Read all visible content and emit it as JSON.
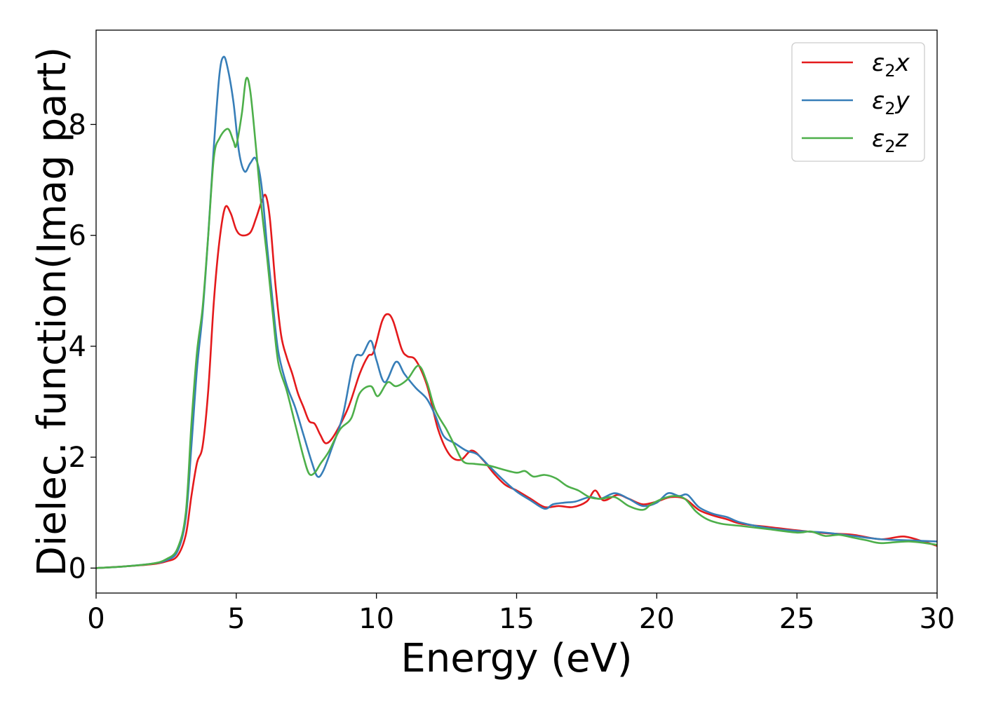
{
  "chart_data": {
    "type": "line",
    "xlabel": "Energy (eV)",
    "ylabel": "Dielec. function(Imag part)",
    "xlim": [
      0,
      30
    ],
    "ylim": [
      -0.45,
      9.7
    ],
    "x_ticks": [
      0,
      5,
      10,
      15,
      20,
      25,
      30
    ],
    "y_ticks": [
      0,
      2,
      4,
      6,
      8
    ],
    "grid": false,
    "legend_position": "top-right",
    "series": [
      {
        "name": "ε2x",
        "legend": {
          "base": "ε",
          "sub": "2",
          "tail": "x"
        },
        "color": "#e41a1c",
        "points": [
          [
            0,
            0
          ],
          [
            1,
            0.03
          ],
          [
            2,
            0.07
          ],
          [
            2.5,
            0.12
          ],
          [
            2.9,
            0.22
          ],
          [
            3.2,
            0.6
          ],
          [
            3.4,
            1.3
          ],
          [
            3.6,
            1.9
          ],
          [
            3.8,
            2.2
          ],
          [
            4.0,
            3.2
          ],
          [
            4.2,
            4.8
          ],
          [
            4.4,
            5.9
          ],
          [
            4.6,
            6.5
          ],
          [
            4.8,
            6.4
          ],
          [
            5.0,
            6.1
          ],
          [
            5.2,
            6.0
          ],
          [
            5.5,
            6.05
          ],
          [
            5.7,
            6.3
          ],
          [
            5.9,
            6.6
          ],
          [
            6.05,
            6.72
          ],
          [
            6.2,
            6.3
          ],
          [
            6.4,
            5.1
          ],
          [
            6.6,
            4.2
          ],
          [
            6.8,
            3.8
          ],
          [
            7.0,
            3.5
          ],
          [
            7.2,
            3.15
          ],
          [
            7.4,
            2.9
          ],
          [
            7.6,
            2.65
          ],
          [
            7.8,
            2.6
          ],
          [
            8.0,
            2.4
          ],
          [
            8.2,
            2.25
          ],
          [
            8.5,
            2.4
          ],
          [
            9.0,
            2.9
          ],
          [
            9.4,
            3.5
          ],
          [
            9.7,
            3.82
          ],
          [
            9.9,
            3.9
          ],
          [
            10.2,
            4.45
          ],
          [
            10.4,
            4.58
          ],
          [
            10.6,
            4.45
          ],
          [
            10.9,
            3.95
          ],
          [
            11.1,
            3.82
          ],
          [
            11.4,
            3.75
          ],
          [
            11.8,
            3.3
          ],
          [
            12.2,
            2.5
          ],
          [
            12.6,
            2.05
          ],
          [
            13.0,
            1.95
          ],
          [
            13.4,
            2.12
          ],
          [
            13.8,
            1.95
          ],
          [
            14.2,
            1.7
          ],
          [
            14.6,
            1.5
          ],
          [
            15.0,
            1.4
          ],
          [
            15.5,
            1.25
          ],
          [
            16.0,
            1.1
          ],
          [
            16.5,
            1.12
          ],
          [
            17.0,
            1.1
          ],
          [
            17.5,
            1.2
          ],
          [
            17.8,
            1.4
          ],
          [
            18.1,
            1.22
          ],
          [
            18.6,
            1.32
          ],
          [
            19.0,
            1.25
          ],
          [
            19.5,
            1.15
          ],
          [
            20.0,
            1.2
          ],
          [
            20.5,
            1.28
          ],
          [
            21.0,
            1.25
          ],
          [
            21.5,
            1.05
          ],
          [
            22.0,
            0.95
          ],
          [
            22.5,
            0.88
          ],
          [
            23.0,
            0.8
          ],
          [
            24.0,
            0.74
          ],
          [
            25.0,
            0.68
          ],
          [
            26.0,
            0.63
          ],
          [
            27.0,
            0.6
          ],
          [
            28.0,
            0.52
          ],
          [
            28.8,
            0.57
          ],
          [
            29.5,
            0.48
          ],
          [
            30,
            0.4
          ]
        ]
      },
      {
        "name": "ε2y",
        "legend": {
          "base": "ε",
          "sub": "2",
          "tail": "y"
        },
        "color": "#377eb8",
        "points": [
          [
            0,
            0
          ],
          [
            1,
            0.03
          ],
          [
            2,
            0.08
          ],
          [
            2.5,
            0.14
          ],
          [
            2.9,
            0.3
          ],
          [
            3.2,
            0.9
          ],
          [
            3.4,
            2.2
          ],
          [
            3.6,
            3.6
          ],
          [
            3.8,
            4.6
          ],
          [
            4.0,
            6.0
          ],
          [
            4.2,
            7.6
          ],
          [
            4.4,
            8.9
          ],
          [
            4.55,
            9.22
          ],
          [
            4.7,
            9.0
          ],
          [
            4.9,
            8.4
          ],
          [
            5.1,
            7.5
          ],
          [
            5.3,
            7.15
          ],
          [
            5.5,
            7.3
          ],
          [
            5.7,
            7.38
          ],
          [
            5.9,
            6.9
          ],
          [
            6.1,
            5.8
          ],
          [
            6.3,
            4.8
          ],
          [
            6.5,
            3.9
          ],
          [
            6.8,
            3.3
          ],
          [
            7.1,
            2.9
          ],
          [
            7.4,
            2.4
          ],
          [
            7.7,
            1.9
          ],
          [
            7.9,
            1.65
          ],
          [
            8.1,
            1.75
          ],
          [
            8.4,
            2.15
          ],
          [
            8.8,
            2.75
          ],
          [
            9.2,
            3.75
          ],
          [
            9.5,
            3.85
          ],
          [
            9.8,
            4.1
          ],
          [
            10.0,
            3.75
          ],
          [
            10.3,
            3.35
          ],
          [
            10.7,
            3.72
          ],
          [
            11.0,
            3.5
          ],
          [
            11.4,
            3.25
          ],
          [
            11.8,
            3.05
          ],
          [
            12.1,
            2.75
          ],
          [
            12.4,
            2.38
          ],
          [
            12.8,
            2.25
          ],
          [
            13.2,
            2.12
          ],
          [
            13.6,
            2.05
          ],
          [
            14.0,
            1.85
          ],
          [
            14.5,
            1.6
          ],
          [
            15.0,
            1.38
          ],
          [
            15.5,
            1.22
          ],
          [
            16.0,
            1.07
          ],
          [
            16.3,
            1.15
          ],
          [
            16.7,
            1.18
          ],
          [
            17.1,
            1.2
          ],
          [
            17.6,
            1.28
          ],
          [
            18.0,
            1.25
          ],
          [
            18.5,
            1.35
          ],
          [
            19.0,
            1.25
          ],
          [
            19.5,
            1.12
          ],
          [
            20.0,
            1.18
          ],
          [
            20.4,
            1.35
          ],
          [
            20.8,
            1.3
          ],
          [
            21.1,
            1.32
          ],
          [
            21.5,
            1.1
          ],
          [
            22.0,
            0.98
          ],
          [
            22.5,
            0.92
          ],
          [
            23.0,
            0.82
          ],
          [
            24.0,
            0.72
          ],
          [
            25.0,
            0.67
          ],
          [
            26.0,
            0.64
          ],
          [
            27.0,
            0.58
          ],
          [
            28.0,
            0.52
          ],
          [
            29.0,
            0.5
          ],
          [
            30,
            0.48
          ]
        ]
      },
      {
        "name": "ε2z",
        "legend": {
          "base": "ε",
          "sub": "2",
          "tail": "z"
        },
        "color": "#4daf4a",
        "points": [
          [
            0,
            0
          ],
          [
            1,
            0.03
          ],
          [
            2,
            0.08
          ],
          [
            2.5,
            0.16
          ],
          [
            2.9,
            0.35
          ],
          [
            3.2,
            1.0
          ],
          [
            3.4,
            2.6
          ],
          [
            3.6,
            3.9
          ],
          [
            3.8,
            4.7
          ],
          [
            4.0,
            6.0
          ],
          [
            4.2,
            7.4
          ],
          [
            4.4,
            7.75
          ],
          [
            4.7,
            7.92
          ],
          [
            4.9,
            7.7
          ],
          [
            5.0,
            7.62
          ],
          [
            5.2,
            8.2
          ],
          [
            5.35,
            8.82
          ],
          [
            5.5,
            8.6
          ],
          [
            5.7,
            7.6
          ],
          [
            5.9,
            6.5
          ],
          [
            6.1,
            5.6
          ],
          [
            6.3,
            4.6
          ],
          [
            6.5,
            3.7
          ],
          [
            6.8,
            3.2
          ],
          [
            7.1,
            2.6
          ],
          [
            7.4,
            2.0
          ],
          [
            7.6,
            1.7
          ],
          [
            7.8,
            1.72
          ],
          [
            8.0,
            1.88
          ],
          [
            8.3,
            2.1
          ],
          [
            8.7,
            2.5
          ],
          [
            9.1,
            2.7
          ],
          [
            9.4,
            3.15
          ],
          [
            9.8,
            3.28
          ],
          [
            10.05,
            3.1
          ],
          [
            10.4,
            3.35
          ],
          [
            10.7,
            3.28
          ],
          [
            11.1,
            3.4
          ],
          [
            11.5,
            3.65
          ],
          [
            11.8,
            3.35
          ],
          [
            12.1,
            2.85
          ],
          [
            12.5,
            2.5
          ],
          [
            12.8,
            2.2
          ],
          [
            13.1,
            1.92
          ],
          [
            13.5,
            1.88
          ],
          [
            14.0,
            1.85
          ],
          [
            14.5,
            1.78
          ],
          [
            15.0,
            1.72
          ],
          [
            15.3,
            1.75
          ],
          [
            15.6,
            1.65
          ],
          [
            16.0,
            1.68
          ],
          [
            16.4,
            1.62
          ],
          [
            16.8,
            1.48
          ],
          [
            17.2,
            1.4
          ],
          [
            17.6,
            1.28
          ],
          [
            18.0,
            1.25
          ],
          [
            18.5,
            1.28
          ],
          [
            19.0,
            1.12
          ],
          [
            19.5,
            1.05
          ],
          [
            19.8,
            1.15
          ],
          [
            20.2,
            1.25
          ],
          [
            20.6,
            1.3
          ],
          [
            21.0,
            1.25
          ],
          [
            21.4,
            1.02
          ],
          [
            21.8,
            0.88
          ],
          [
            22.3,
            0.8
          ],
          [
            23.0,
            0.76
          ],
          [
            24.0,
            0.7
          ],
          [
            25.0,
            0.64
          ],
          [
            25.5,
            0.66
          ],
          [
            26.0,
            0.58
          ],
          [
            26.5,
            0.6
          ],
          [
            27.0,
            0.55
          ],
          [
            27.5,
            0.5
          ],
          [
            28.0,
            0.45
          ],
          [
            29.0,
            0.48
          ],
          [
            30,
            0.42
          ]
        ]
      }
    ]
  }
}
